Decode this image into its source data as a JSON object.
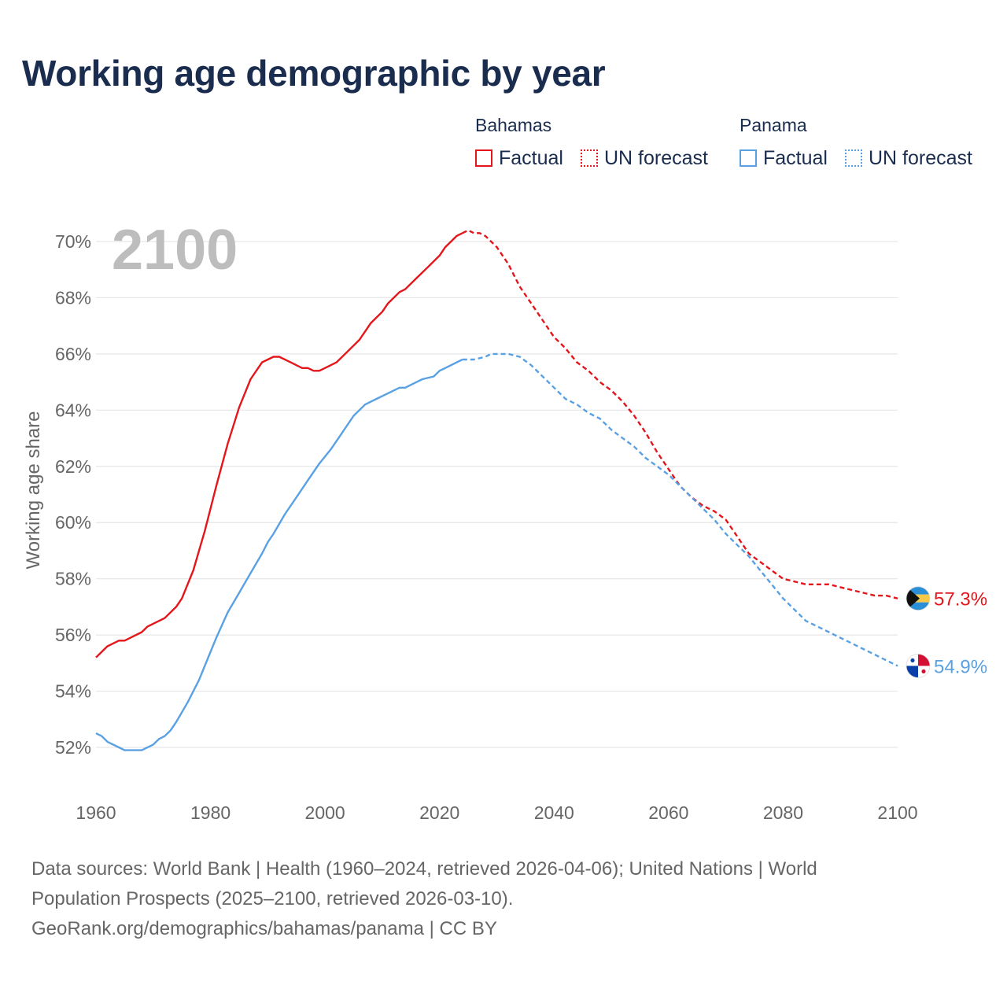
{
  "title": "Working age demographic by year",
  "legend": {
    "groups": [
      {
        "country": "Bahamas",
        "factual_label": "Factual",
        "forecast_label": "UN forecast",
        "color": "#e3161b"
      },
      {
        "country": "Panama",
        "factual_label": "Factual",
        "forecast_label": "UN forecast",
        "color": "#5aa1e3"
      }
    ]
  },
  "year_badge": "2100",
  "footer": {
    "line1": "Data sources: World Bank | Health (1960–2024, retrieved 2026-04-06); United Nations | World",
    "line2": "Population Prospects (2025–2100, retrieved 2026-03-10).",
    "line3": "GeoRank.org/demographics/bahamas/panama | CC BY"
  },
  "chart_data": {
    "type": "line",
    "title": "Working age demographic by year",
    "xlabel": "",
    "ylabel": "Working age share",
    "xlim": [
      1960,
      2100
    ],
    "ylim": [
      51,
      70.5
    ],
    "x_ticks": [
      1960,
      1980,
      2000,
      2020,
      2040,
      2060,
      2080,
      2100
    ],
    "x_tick_labels": [
      "1960",
      "1980",
      "2000",
      "2020",
      "2040",
      "2060",
      "2080",
      "2100"
    ],
    "y_ticks": [
      52,
      54,
      56,
      58,
      60,
      62,
      64,
      66,
      68,
      70
    ],
    "y_tick_labels": [
      "52%",
      "54%",
      "56%",
      "58%",
      "60%",
      "62%",
      "64%",
      "66%",
      "68%",
      "70%"
    ],
    "grid": true,
    "forecast_start": 2024,
    "series": [
      {
        "name": "Bahamas",
        "color": "#e3161b",
        "end_label": "57.3%",
        "x": [
          1960,
          1962,
          1964,
          1965,
          1966,
          1968,
          1969,
          1970,
          1972,
          1974,
          1975,
          1977,
          1979,
          1981,
          1983,
          1985,
          1987,
          1989,
          1990,
          1991,
          1992,
          1994,
          1996,
          1997,
          1998,
          1999,
          2000,
          2002,
          2004,
          2006,
          2007,
          2008,
          2010,
          2011,
          2013,
          2014,
          2016,
          2018,
          2020,
          2021,
          2022,
          2023,
          2024,
          2025,
          2026,
          2027,
          2028,
          2030,
          2032,
          2034,
          2036,
          2038,
          2040,
          2042,
          2044,
          2046,
          2048,
          2050,
          2052,
          2054,
          2056,
          2058,
          2060,
          2062,
          2064,
          2066,
          2068,
          2070,
          2072,
          2074,
          2076,
          2078,
          2080,
          2082,
          2084,
          2086,
          2088,
          2090,
          2092,
          2094,
          2096,
          2098,
          2100
        ],
        "values": [
          55.2,
          55.6,
          55.8,
          55.8,
          55.9,
          56.1,
          56.3,
          56.4,
          56.6,
          57.0,
          57.3,
          58.3,
          59.7,
          61.3,
          62.8,
          64.1,
          65.1,
          65.7,
          65.8,
          65.9,
          65.9,
          65.7,
          65.5,
          65.5,
          65.4,
          65.4,
          65.5,
          65.7,
          66.1,
          66.5,
          66.8,
          67.1,
          67.5,
          67.8,
          68.2,
          68.3,
          68.7,
          69.1,
          69.5,
          69.8,
          70.0,
          70.2,
          70.3,
          70.4,
          70.3,
          70.3,
          70.2,
          69.8,
          69.2,
          68.4,
          67.8,
          67.2,
          66.6,
          66.2,
          65.7,
          65.4,
          65.0,
          64.7,
          64.3,
          63.8,
          63.2,
          62.5,
          61.9,
          61.3,
          60.9,
          60.6,
          60.4,
          60.1,
          59.5,
          58.9,
          58.6,
          58.3,
          58.0,
          57.9,
          57.8,
          57.8,
          57.8,
          57.7,
          57.6,
          57.5,
          57.4,
          57.4,
          57.3
        ]
      },
      {
        "name": "Panama",
        "color": "#5aa1e3",
        "end_label": "54.9%",
        "x": [
          1960,
          1961,
          1962,
          1964,
          1965,
          1966,
          1968,
          1970,
          1971,
          1972,
          1973,
          1974,
          1976,
          1978,
          1980,
          1981,
          1983,
          1985,
          1987,
          1989,
          1990,
          1991,
          1993,
          1995,
          1997,
          1999,
          2001,
          2003,
          2005,
          2007,
          2009,
          2011,
          2013,
          2014,
          2016,
          2017,
          2019,
          2020,
          2021,
          2022,
          2023,
          2024,
          2025,
          2026,
          2028,
          2029,
          2030,
          2032,
          2034,
          2036,
          2038,
          2040,
          2042,
          2044,
          2046,
          2048,
          2050,
          2052,
          2054,
          2056,
          2058,
          2060,
          2062,
          2064,
          2066,
          2068,
          2070,
          2072,
          2074,
          2076,
          2078,
          2080,
          2082,
          2084,
          2086,
          2088,
          2090,
          2092,
          2094,
          2096,
          2098,
          2100
        ],
        "values": [
          52.5,
          52.4,
          52.2,
          52.0,
          51.9,
          51.9,
          51.9,
          52.1,
          52.3,
          52.4,
          52.6,
          52.9,
          53.6,
          54.4,
          55.4,
          55.9,
          56.8,
          57.5,
          58.2,
          58.9,
          59.3,
          59.6,
          60.3,
          60.9,
          61.5,
          62.1,
          62.6,
          63.2,
          63.8,
          64.2,
          64.4,
          64.6,
          64.8,
          64.8,
          65.0,
          65.1,
          65.2,
          65.4,
          65.5,
          65.6,
          65.7,
          65.8,
          65.8,
          65.8,
          65.9,
          66.0,
          66.0,
          66.0,
          65.9,
          65.6,
          65.2,
          64.8,
          64.4,
          64.2,
          63.9,
          63.7,
          63.3,
          63.0,
          62.7,
          62.3,
          62.0,
          61.7,
          61.3,
          60.9,
          60.5,
          60.1,
          59.6,
          59.2,
          58.8,
          58.3,
          57.8,
          57.3,
          56.9,
          56.5,
          56.3,
          56.1,
          55.9,
          55.7,
          55.5,
          55.3,
          55.1,
          54.9
        ]
      }
    ]
  }
}
